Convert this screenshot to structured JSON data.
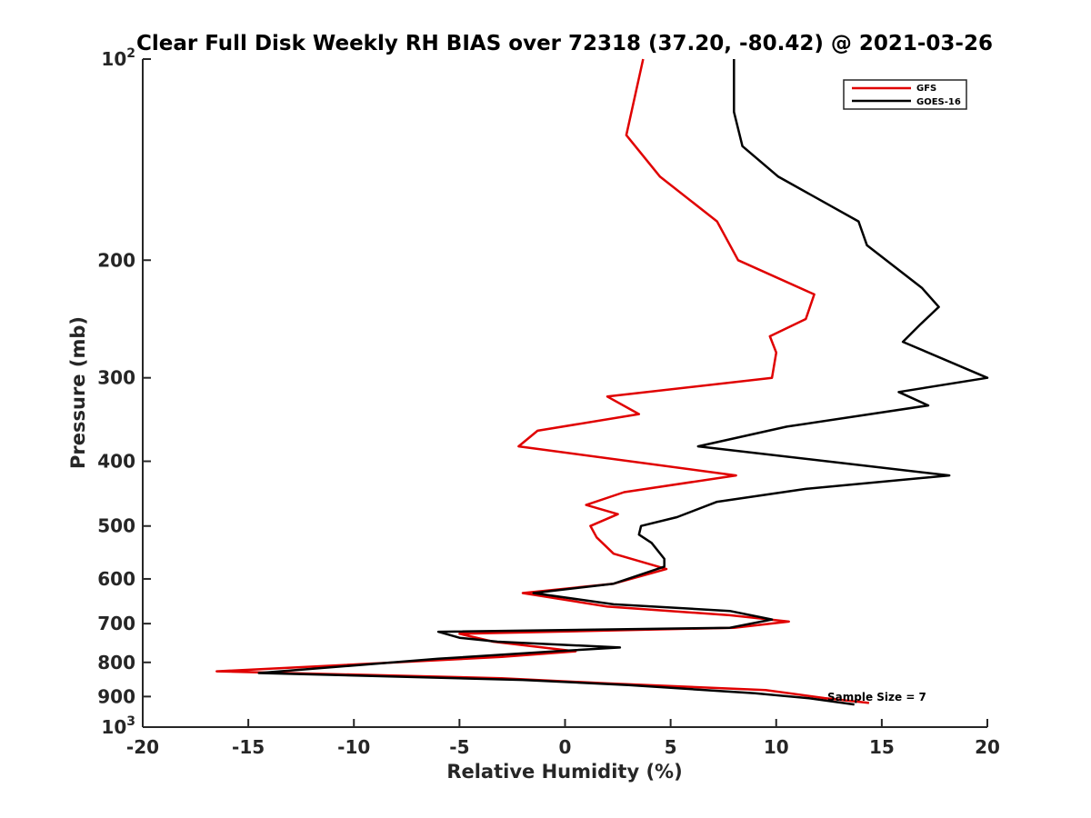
{
  "chart_data": {
    "type": "line",
    "title": "Clear Full Disk Weekly RH BIAS over 72318 (37.20, -80.42) @ 2021-03-26",
    "xlabel": "Relative Humidity (%)",
    "ylabel": "Pressure (mb)",
    "xlim": [
      -20,
      20
    ],
    "ylim": [
      100,
      1000
    ],
    "y_scale": "log",
    "y_reversed": true,
    "grid": false,
    "legend_position": "top-right",
    "x_ticks": [
      "-20",
      "-15",
      "-10",
      "-5",
      "0",
      "5",
      "10",
      "15",
      "20"
    ],
    "y_ticks": [
      {
        "value": 100,
        "base": "10",
        "exp": "2"
      },
      {
        "value": 200,
        "label": "200"
      },
      {
        "value": 300,
        "label": "300"
      },
      {
        "value": 400,
        "label": "400"
      },
      {
        "value": 500,
        "label": "500"
      },
      {
        "value": 600,
        "label": "600"
      },
      {
        "value": 700,
        "label": "700"
      },
      {
        "value": 800,
        "label": "800"
      },
      {
        "value": 900,
        "label": "900"
      },
      {
        "value": 1000,
        "base": "10",
        "exp": "3"
      }
    ],
    "annotation": "Sample Size = 7",
    "series": [
      {
        "name": "GFS",
        "color": "#e00000",
        "points": [
          [
            3.7,
            100
          ],
          [
            2.9,
            130
          ],
          [
            4.5,
            150
          ],
          [
            7.2,
            175
          ],
          [
            8.2,
            200
          ],
          [
            11.8,
            225
          ],
          [
            11.4,
            245
          ],
          [
            9.7,
            260
          ],
          [
            10.0,
            275
          ],
          [
            9.8,
            300
          ],
          [
            2.0,
            320
          ],
          [
            3.5,
            340
          ],
          [
            -1.3,
            360
          ],
          [
            -2.2,
            380
          ],
          [
            8.1,
            420
          ],
          [
            2.8,
            445
          ],
          [
            1.0,
            465
          ],
          [
            2.5,
            480
          ],
          [
            1.2,
            500
          ],
          [
            1.5,
            520
          ],
          [
            2.3,
            550
          ],
          [
            4.8,
            580
          ],
          [
            2.3,
            610
          ],
          [
            -2.0,
            630
          ],
          [
            2.0,
            660
          ],
          [
            7.8,
            680
          ],
          [
            10.6,
            695
          ],
          [
            8.0,
            710
          ],
          [
            -5.0,
            725
          ],
          [
            -3.4,
            745
          ],
          [
            0.5,
            770
          ],
          [
            -3.0,
            785
          ],
          [
            -8.0,
            800
          ],
          [
            -16.5,
            825
          ],
          [
            -3.0,
            845
          ],
          [
            2.0,
            860
          ],
          [
            9.5,
            880
          ],
          [
            12.3,
            905
          ],
          [
            14.4,
            920
          ]
        ]
      },
      {
        "name": "GOES-16",
        "color": "#000000",
        "points": [
          [
            8.0,
            100
          ],
          [
            8.0,
            120
          ],
          [
            8.4,
            135
          ],
          [
            10.1,
            150
          ],
          [
            13.9,
            175
          ],
          [
            14.3,
            190
          ],
          [
            16.9,
            220
          ],
          [
            17.7,
            235
          ],
          [
            16.8,
            250
          ],
          [
            16.0,
            265
          ],
          [
            20.0,
            300
          ],
          [
            15.8,
            315
          ],
          [
            17.2,
            330
          ],
          [
            10.5,
            355
          ],
          [
            6.3,
            380
          ],
          [
            18.2,
            420
          ],
          [
            11.4,
            440
          ],
          [
            7.2,
            460
          ],
          [
            5.3,
            485
          ],
          [
            3.6,
            500
          ],
          [
            3.5,
            515
          ],
          [
            4.1,
            530
          ],
          [
            4.7,
            560
          ],
          [
            4.7,
            575
          ],
          [
            2.3,
            610
          ],
          [
            -1.5,
            630
          ],
          [
            2.3,
            655
          ],
          [
            7.8,
            670
          ],
          [
            9.8,
            690
          ],
          [
            7.8,
            710
          ],
          [
            -6.0,
            720
          ],
          [
            -5.0,
            735
          ],
          [
            -3.2,
            745
          ],
          [
            2.6,
            760
          ],
          [
            -0.5,
            770
          ],
          [
            -6.0,
            790
          ],
          [
            -14.5,
            830
          ],
          [
            -2.0,
            850
          ],
          [
            3.0,
            865
          ],
          [
            9.0,
            890
          ],
          [
            11.5,
            905
          ],
          [
            13.7,
            925
          ]
        ]
      }
    ]
  }
}
